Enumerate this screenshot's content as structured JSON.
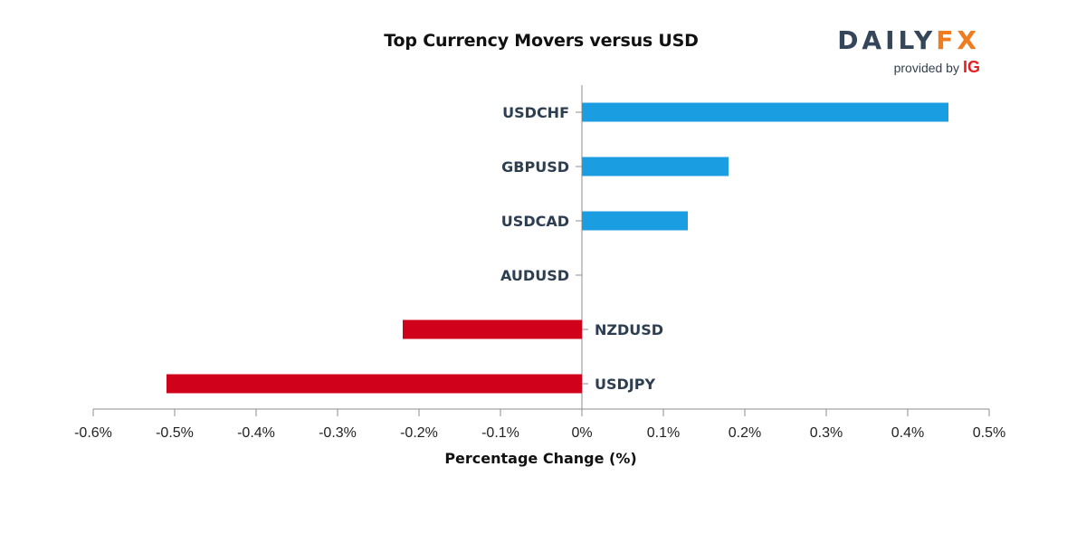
{
  "chart_data": {
    "type": "bar",
    "orientation": "horizontal",
    "title": "Top Currency Movers versus USD",
    "xlabel": "Percentage Change (%)",
    "ylabel": "",
    "xlim": [
      -0.6,
      0.5
    ],
    "x_ticks": [
      -0.6,
      -0.5,
      -0.4,
      -0.3,
      -0.2,
      -0.1,
      0,
      0.1,
      0.2,
      0.3,
      0.4,
      0.5
    ],
    "x_tick_labels": [
      "-0.6%",
      "-0.5%",
      "-0.4%",
      "-0.3%",
      "-0.2%",
      "-0.1%",
      "0%",
      "0.1%",
      "0.2%",
      "0.3%",
      "0.4%",
      "0.5%"
    ],
    "categories": [
      "USDCHF",
      "GBPUSD",
      "USDCAD",
      "AUDUSD",
      "NZDUSD",
      "USDJPY"
    ],
    "values": [
      0.45,
      0.18,
      0.13,
      0.0,
      -0.22,
      -0.51
    ],
    "grid": false,
    "colors": {
      "positive": "#1b9de2",
      "negative": "#d0021b",
      "axis": "#8c8c8c",
      "label": "#2c3e50"
    }
  },
  "logo": {
    "word_part1": "DAILY",
    "word_part2": "FX",
    "provided_by": "provided by",
    "brand": "IG"
  }
}
